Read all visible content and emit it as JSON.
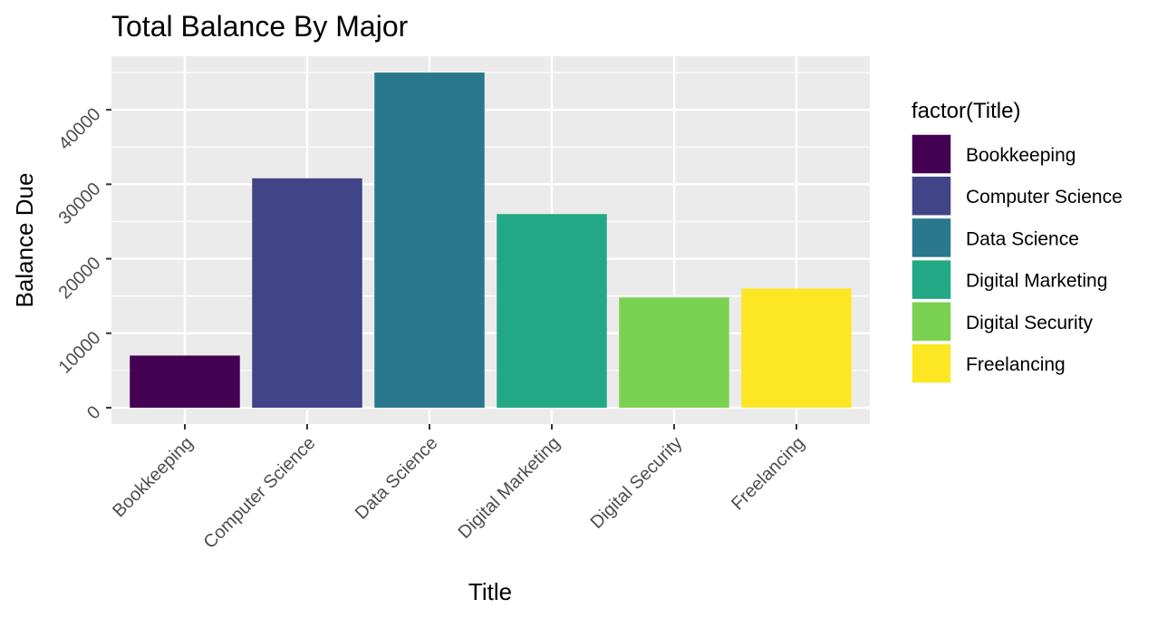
{
  "chart_data": {
    "type": "bar",
    "title": "Total Balance By Major",
    "xlabel": "Title",
    "ylabel": "Balance Due",
    "categories": [
      "Bookkeeping",
      "Computer Science",
      "Data Science",
      "Digital Marketing",
      "Digital Security",
      "Freelancing"
    ],
    "values": [
      7000,
      30800,
      45000,
      26000,
      14800,
      16000
    ],
    "colors": [
      "#440154",
      "#414487",
      "#2A788E",
      "#22A884",
      "#7AD151",
      "#FDE725"
    ],
    "ylim": [
      -2200,
      47200
    ],
    "yticks": [
      0,
      10000,
      20000,
      30000,
      40000
    ],
    "ytick_labels": [
      "0",
      "10000",
      "20000",
      "30000",
      "40000"
    ],
    "grid": true,
    "legend": {
      "title": "factor(Title)",
      "placement": "right",
      "entries": [
        "Bookkeeping",
        "Computer Science",
        "Data Science",
        "Digital Marketing",
        "Digital Security",
        "Freelancing"
      ]
    }
  }
}
